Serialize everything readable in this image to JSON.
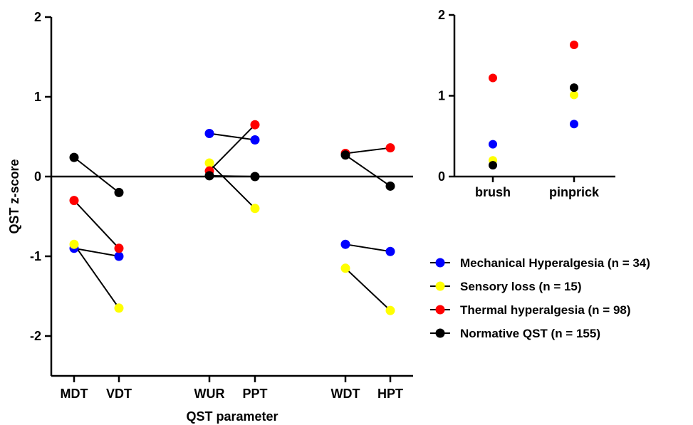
{
  "chart_data": [
    {
      "type": "scatter",
      "title": "",
      "xlabel": "QST parameter",
      "ylabel": "QST z-score",
      "ylim": [
        -2.5,
        2
      ],
      "yticks": [
        2,
        1,
        0,
        -1,
        -2
      ],
      "ytick_labels": [
        "2",
        "1",
        "0",
        "-1",
        "-2"
      ],
      "zero_line": true,
      "categories": [
        "MDT",
        "VDT",
        "WUR",
        "PPT",
        "WDT",
        "HPT"
      ],
      "connected_pairs": [
        [
          "MDT",
          "VDT"
        ],
        [
          "WUR",
          "PPT"
        ],
        [
          "WDT",
          "HPT"
        ]
      ],
      "series": [
        {
          "name": "Mechanical Hyperalgesia (n = 34)",
          "color": "#0000ff",
          "values": [
            -0.9,
            -1.0,
            0.54,
            0.46,
            -0.85,
            -0.94
          ]
        },
        {
          "name": "Sensory loss (n = 15)",
          "color": "#ffff00",
          "values": [
            -0.85,
            -1.65,
            0.17,
            -0.4,
            -1.15,
            -1.68
          ]
        },
        {
          "name": "Thermal hyperalgesia (n = 98)",
          "color": "#ff0000",
          "values": [
            -0.3,
            -0.9,
            0.07,
            0.65,
            0.29,
            0.36
          ]
        },
        {
          "name": "Normative QST (n = 155)",
          "color": "#000000",
          "values": [
            0.24,
            -0.2,
            0.01,
            0.0,
            0.27,
            -0.12
          ]
        }
      ]
    },
    {
      "type": "scatter",
      "title": "",
      "xlabel": "",
      "ylabel": "",
      "ylim": [
        0,
        2
      ],
      "yticks": [
        2,
        1,
        0
      ],
      "ytick_labels": [
        "2",
        "1",
        "0"
      ],
      "categories": [
        "brush",
        "pinprick"
      ],
      "series": [
        {
          "name": "Mechanical Hyperalgesia (n = 34)",
          "color": "#0000ff",
          "values": [
            0.4,
            0.65
          ]
        },
        {
          "name": "Sensory loss (n = 15)",
          "color": "#ffff00",
          "values": [
            0.2,
            1.01
          ]
        },
        {
          "name": "Thermal hyperalgesia (n = 98)",
          "color": "#ff0000",
          "values": [
            1.22,
            1.63
          ]
        },
        {
          "name": "Normative QST (n = 155)",
          "color": "#000000",
          "values": [
            0.14,
            1.1
          ]
        }
      ]
    }
  ],
  "legend": {
    "placement": "right",
    "items": [
      {
        "label": "Mechanical Hyperalgesia (n = 34)",
        "color": "#0000ff"
      },
      {
        "label": "Sensory loss (n = 15)",
        "color": "#ffff00"
      },
      {
        "label": "Thermal hyperalgesia (n = 98)",
        "color": "#ff0000"
      },
      {
        "label": "Normative QST (n = 155)",
        "color": "#000000"
      }
    ]
  }
}
